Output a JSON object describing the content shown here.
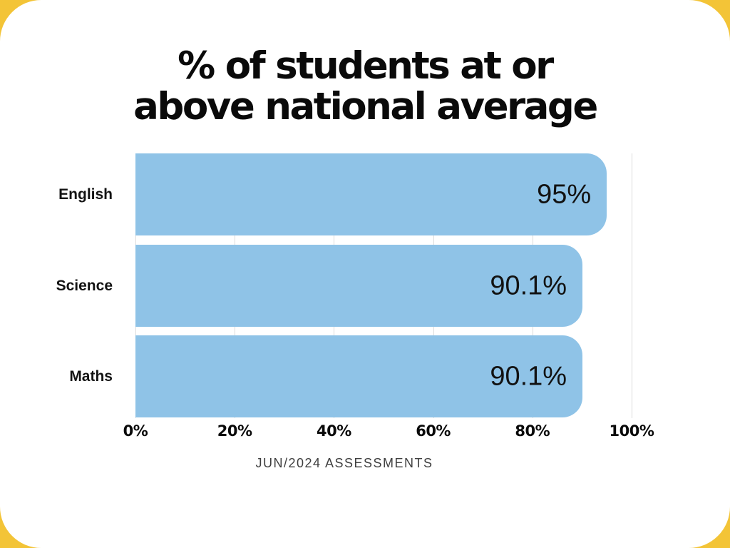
{
  "page": {
    "background_color": "#F3C437",
    "card_color": "#FFFFFF"
  },
  "chart_data": {
    "type": "bar",
    "orientation": "horizontal",
    "title": "% of students at or above national average",
    "title_lines": [
      "% of students at or",
      "above national average"
    ],
    "categories": [
      "English",
      "Science",
      "Maths"
    ],
    "values": [
      95,
      90.1,
      90.1
    ],
    "value_labels": [
      "95%",
      "90.1%",
      "90.1%"
    ],
    "xlabel": "",
    "ylabel": "",
    "xlim": [
      0,
      100
    ],
    "x_tick_labels": [
      "0%",
      "20%",
      "40%",
      "60%",
      "80%",
      "100%"
    ],
    "grid": true,
    "legend": false,
    "footer": "JUN/2024 ASSESSMENTS",
    "colors": {
      "bar": "#8FC3E7",
      "title_text": "#0A0A0A",
      "category_text": "#131313",
      "value_text": "#121212",
      "tick_text": "#0A0A0A",
      "gridline": "#DCDCDC",
      "footer_text": "#3F3F3F"
    }
  }
}
